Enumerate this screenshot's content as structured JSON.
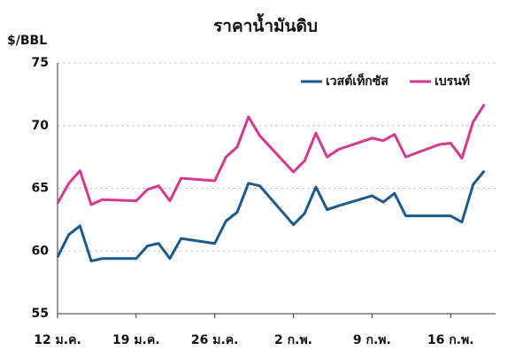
{
  "chart_data": {
    "type": "line",
    "title": "ราคาน้ำมันดิบ",
    "y_label": "$/BBL",
    "x": [
      0,
      1,
      2,
      3,
      4,
      7,
      8,
      9,
      10,
      11,
      14,
      15,
      16,
      17,
      18,
      21,
      22,
      23,
      24,
      25,
      28,
      29,
      30,
      31,
      34,
      35,
      36,
      37,
      38
    ],
    "series": [
      {
        "name": "เวสต์เท็กซัส",
        "color": "#1a5a8e",
        "values": [
          59.5,
          61.3,
          62.0,
          59.2,
          59.4,
          59.4,
          60.4,
          60.6,
          59.4,
          61.0,
          60.6,
          62.4,
          63.1,
          65.4,
          65.2,
          62.1,
          63.0,
          65.1,
          63.3,
          63.6,
          64.4,
          63.9,
          64.6,
          62.8,
          62.8,
          62.8,
          62.3,
          65.3,
          66.4
        ]
      },
      {
        "name": "เบรนท์",
        "color": "#d6388f",
        "values": [
          63.8,
          65.4,
          66.4,
          63.7,
          64.1,
          64.0,
          64.9,
          65.2,
          64.0,
          65.8,
          65.6,
          67.5,
          68.3,
          70.7,
          69.2,
          66.3,
          67.2,
          69.4,
          67.5,
          68.1,
          69.0,
          68.8,
          69.3,
          67.5,
          68.5,
          68.6,
          67.4,
          70.3,
          71.7
        ]
      }
    ],
    "xlim": [
      0,
      39
    ],
    "xticks": [
      {
        "value": 0,
        "label": "12 ม.ค."
      },
      {
        "value": 7,
        "label": "19 ม.ค."
      },
      {
        "value": 14,
        "label": "26 ม.ค."
      },
      {
        "value": 21,
        "label": "2 ก.พ."
      },
      {
        "value": 28,
        "label": "9 ก.พ."
      },
      {
        "value": 35,
        "label": "16 ก.พ."
      }
    ],
    "ylim": [
      55,
      75
    ],
    "yticks": [
      55,
      60,
      65,
      70,
      75
    ],
    "grid": true,
    "legend": "top-right"
  }
}
